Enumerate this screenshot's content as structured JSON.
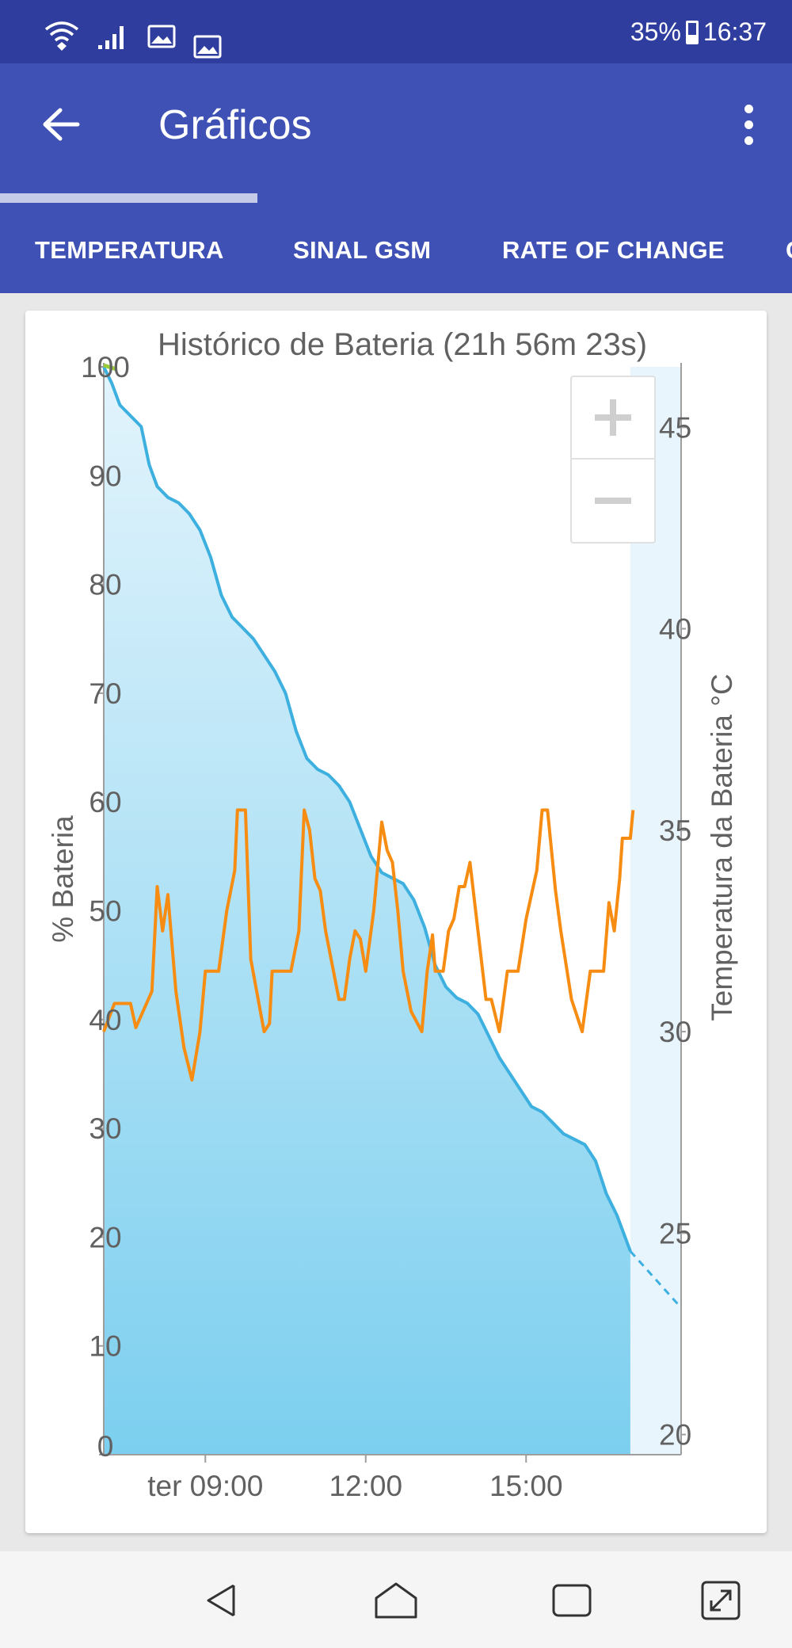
{
  "status_bar": {
    "battery": "35%",
    "time": "16:37",
    "icons": [
      "wifi-icon",
      "signal-icon",
      "image-icon",
      "image-icon"
    ]
  },
  "app_bar": {
    "title": "Gráficos",
    "back_icon": "arrow-back-icon",
    "menu_icon": "more-vert-icon"
  },
  "tabs": [
    {
      "label": "TEMPERATURA",
      "selected": true
    },
    {
      "label": "SINAL GSM",
      "selected": false
    },
    {
      "label": "RATE OF CHANGE",
      "selected": false
    },
    {
      "label": "C",
      "selected": false
    }
  ],
  "zoom": {
    "in_icon": "plus-icon",
    "out_icon": "minus-icon"
  },
  "colors": {
    "battery_line": "#3db0e0",
    "temperature_line": "#f78c12",
    "app_bar": "#3f51b5",
    "status_bar": "#2f3e9e"
  },
  "chart_data": {
    "type": "line",
    "title": "Histórico de Bateria (21h 56m 23s)",
    "ylabel": "% Bateria",
    "y2label": "Temperatura da Bateria °C",
    "xlim": [
      7.1,
      17.9
    ],
    "ylim": [
      0,
      100
    ],
    "y2lim": [
      19.5,
      46.5
    ],
    "x_ticks": [
      9,
      12,
      15
    ],
    "x_tick_labels": [
      "ter 09:00",
      "12:00",
      "15:00"
    ],
    "y_ticks": [
      0,
      10,
      20,
      30,
      40,
      50,
      60,
      70,
      80,
      90,
      100
    ],
    "y_tick_labels": [
      "0",
      "10",
      "20",
      "30",
      "40",
      "50",
      "60",
      "70",
      "80",
      "90",
      "100"
    ],
    "y2_ticks": [
      20,
      25,
      30,
      35,
      40,
      45
    ],
    "y2_tick_labels": [
      "20",
      "25",
      "30",
      "35",
      "40",
      "45"
    ],
    "grid": false,
    "series": [
      {
        "axis": "left",
        "style": "area",
        "points": [
          [
            7.1,
            100
          ],
          [
            7.25,
            98.5
          ],
          [
            7.4,
            96.5
          ],
          [
            7.6,
            95.5
          ],
          [
            7.8,
            94.5
          ],
          [
            7.95,
            91
          ],
          [
            8.1,
            89
          ],
          [
            8.3,
            88
          ],
          [
            8.5,
            87.5
          ],
          [
            8.7,
            86.5
          ],
          [
            8.9,
            85
          ],
          [
            9.1,
            82.5
          ],
          [
            9.3,
            79
          ],
          [
            9.5,
            77
          ],
          [
            9.7,
            76
          ],
          [
            9.9,
            75
          ],
          [
            10.1,
            73.5
          ],
          [
            10.3,
            72
          ],
          [
            10.5,
            70
          ],
          [
            10.7,
            66.5
          ],
          [
            10.9,
            64
          ],
          [
            11.1,
            63
          ],
          [
            11.3,
            62.5
          ],
          [
            11.5,
            61.5
          ],
          [
            11.7,
            60
          ],
          [
            11.9,
            57.5
          ],
          [
            12.1,
            55
          ],
          [
            12.3,
            53.5
          ],
          [
            12.5,
            53
          ],
          [
            12.7,
            52.5
          ],
          [
            12.9,
            51
          ],
          [
            13.1,
            48.5
          ],
          [
            13.3,
            45
          ],
          [
            13.5,
            43
          ],
          [
            13.7,
            42
          ],
          [
            13.9,
            41.5
          ],
          [
            14.1,
            40.5
          ],
          [
            14.3,
            38.5
          ],
          [
            14.5,
            36.5
          ],
          [
            14.7,
            35
          ],
          [
            14.9,
            33.5
          ],
          [
            15.1,
            32
          ],
          [
            15.3,
            31.5
          ],
          [
            15.5,
            30.5
          ],
          [
            15.7,
            29.5
          ],
          [
            15.9,
            29
          ],
          [
            16.1,
            28.5
          ],
          [
            16.3,
            27
          ],
          [
            16.5,
            24
          ],
          [
            16.7,
            22
          ],
          [
            16.95,
            18.7
          ]
        ]
      },
      {
        "axis": "left",
        "style": "dashed",
        "points": [
          [
            16.95,
            18.7
          ],
          [
            17.9,
            13.5
          ]
        ]
      },
      {
        "axis": "right",
        "style": "line",
        "points": [
          [
            7.1,
            30.0
          ],
          [
            7.3,
            30.7
          ],
          [
            7.6,
            30.7
          ],
          [
            7.7,
            30.1
          ],
          [
            7.9,
            30.7
          ],
          [
            8.0,
            31.0
          ],
          [
            8.1,
            33.6
          ],
          [
            8.2,
            32.5
          ],
          [
            8.3,
            33.4
          ],
          [
            8.45,
            31.0
          ],
          [
            8.6,
            29.6
          ],
          [
            8.75,
            28.8
          ],
          [
            8.9,
            30.0
          ],
          [
            9.0,
            31.5
          ],
          [
            9.25,
            31.5
          ],
          [
            9.4,
            33.0
          ],
          [
            9.55,
            34.0
          ],
          [
            9.6,
            35.5
          ],
          [
            9.75,
            35.5
          ],
          [
            9.85,
            31.8
          ],
          [
            10.1,
            30.0
          ],
          [
            10.2,
            30.2
          ],
          [
            10.25,
            31.5
          ],
          [
            10.6,
            31.5
          ],
          [
            10.75,
            32.5
          ],
          [
            10.85,
            35.5
          ],
          [
            10.95,
            35.0
          ],
          [
            11.05,
            33.8
          ],
          [
            11.15,
            33.5
          ],
          [
            11.25,
            32.5
          ],
          [
            11.5,
            30.8
          ],
          [
            11.6,
            30.8
          ],
          [
            11.7,
            31.8
          ],
          [
            11.8,
            32.5
          ],
          [
            11.9,
            32.3
          ],
          [
            12.0,
            31.5
          ],
          [
            12.05,
            32.0
          ],
          [
            12.15,
            33.0
          ],
          [
            12.3,
            35.2
          ],
          [
            12.4,
            34.5
          ],
          [
            12.5,
            34.2
          ],
          [
            12.6,
            33.0
          ],
          [
            12.7,
            31.5
          ],
          [
            12.85,
            30.5
          ],
          [
            13.05,
            30.0
          ],
          [
            13.15,
            31.5
          ],
          [
            13.25,
            32.4
          ],
          [
            13.3,
            31.5
          ],
          [
            13.45,
            31.5
          ],
          [
            13.55,
            32.5
          ],
          [
            13.65,
            32.8
          ],
          [
            13.75,
            33.6
          ],
          [
            13.85,
            33.6
          ],
          [
            13.95,
            34.2
          ],
          [
            14.1,
            32.5
          ],
          [
            14.25,
            30.8
          ],
          [
            14.35,
            30.8
          ],
          [
            14.5,
            30.0
          ],
          [
            14.65,
            31.5
          ],
          [
            14.85,
            31.5
          ],
          [
            15.0,
            32.8
          ],
          [
            15.2,
            34.0
          ],
          [
            15.3,
            35.5
          ],
          [
            15.4,
            35.5
          ],
          [
            15.55,
            33.5
          ],
          [
            15.65,
            32.5
          ],
          [
            15.85,
            30.8
          ],
          [
            16.05,
            30.0
          ],
          [
            16.2,
            31.5
          ],
          [
            16.45,
            31.5
          ],
          [
            16.55,
            33.2
          ],
          [
            16.65,
            32.5
          ],
          [
            16.75,
            33.8
          ],
          [
            16.8,
            34.8
          ],
          [
            16.95,
            34.8
          ],
          [
            17.0,
            35.5
          ]
        ]
      }
    ]
  }
}
